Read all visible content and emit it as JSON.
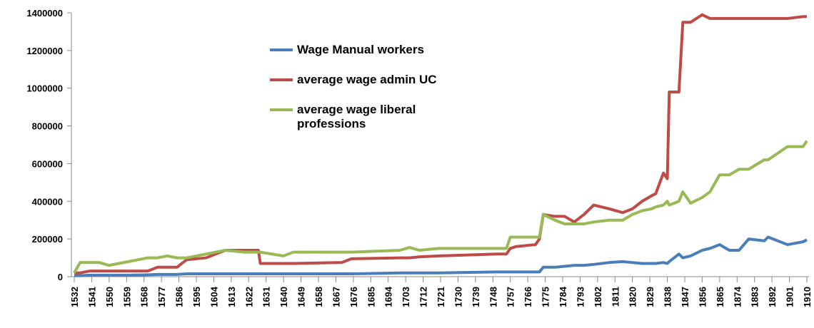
{
  "chart_data": {
    "type": "line",
    "x": [
      1532,
      1535,
      1540,
      1545,
      1550,
      1560,
      1570,
      1575,
      1580,
      1585,
      1590,
      1600,
      1610,
      1620,
      1627,
      1628,
      1640,
      1645,
      1670,
      1675,
      1700,
      1705,
      1710,
      1720,
      1750,
      1755,
      1757,
      1760,
      1770,
      1772,
      1774,
      1780,
      1785,
      1790,
      1795,
      1800,
      1808,
      1815,
      1820,
      1825,
      1830,
      1832,
      1836,
      1838,
      1839,
      1844,
      1846,
      1850,
      1856,
      1860,
      1865,
      1870,
      1875,
      1880,
      1888,
      1890,
      1900,
      1908,
      1910
    ],
    "series": [
      {
        "name": "Wage Manual workers",
        "color": "#4a7ebb",
        "values": [
          5000,
          5000,
          8000,
          8000,
          8000,
          8000,
          10000,
          12000,
          12000,
          12000,
          15000,
          15000,
          15000,
          15000,
          15000,
          15000,
          15000,
          15000,
          15000,
          15000,
          20000,
          20000,
          20000,
          20000,
          25000,
          25000,
          25000,
          25000,
          25000,
          25000,
          50000,
          50000,
          55000,
          60000,
          60000,
          65000,
          75000,
          80000,
          75000,
          70000,
          70000,
          70000,
          75000,
          70000,
          80000,
          120000,
          100000,
          110000,
          140000,
          150000,
          170000,
          140000,
          140000,
          200000,
          190000,
          210000,
          170000,
          185000,
          195000
        ]
      },
      {
        "name": "average wage admin UC",
        "color": "#be4b48",
        "values": [
          20000,
          20000,
          30000,
          30000,
          30000,
          30000,
          30000,
          50000,
          50000,
          50000,
          90000,
          100000,
          140000,
          140000,
          140000,
          70000,
          70000,
          70000,
          75000,
          95000,
          100000,
          100000,
          105000,
          110000,
          120000,
          120000,
          150000,
          160000,
          170000,
          200000,
          330000,
          320000,
          320000,
          290000,
          330000,
          380000,
          360000,
          340000,
          360000,
          400000,
          430000,
          440000,
          550000,
          520000,
          980000,
          980000,
          1350000,
          1350000,
          1390000,
          1370000,
          1370000,
          1370000,
          1370000,
          1370000,
          1370000,
          1370000,
          1370000,
          1380000,
          1380000
        ]
      },
      {
        "name": "average wage liberal professions",
        "color": "#98b954",
        "values": [
          20000,
          75000,
          75000,
          75000,
          60000,
          80000,
          100000,
          100000,
          110000,
          100000,
          100000,
          120000,
          140000,
          130000,
          130000,
          130000,
          110000,
          130000,
          130000,
          130000,
          140000,
          155000,
          140000,
          150000,
          150000,
          150000,
          210000,
          210000,
          210000,
          210000,
          330000,
          300000,
          280000,
          280000,
          280000,
          290000,
          300000,
          300000,
          330000,
          350000,
          360000,
          370000,
          380000,
          400000,
          380000,
          400000,
          450000,
          390000,
          420000,
          450000,
          540000,
          540000,
          570000,
          570000,
          620000,
          620000,
          690000,
          690000,
          720000
        ]
      }
    ],
    "xlim": [
      1532,
      1910
    ],
    "xticks": [
      1532,
      1541,
      1550,
      1559,
      1568,
      1577,
      1586,
      1595,
      1604,
      1613,
      1622,
      1631,
      1640,
      1649,
      1658,
      1667,
      1676,
      1685,
      1694,
      1703,
      1712,
      1721,
      1730,
      1739,
      1748,
      1757,
      1766,
      1775,
      1784,
      1793,
      1802,
      1811,
      1820,
      1829,
      1838,
      1847,
      1856,
      1865,
      1874,
      1883,
      1892,
      1901,
      1910
    ],
    "ylim": [
      0,
      1400000
    ],
    "yticks": [
      0,
      200000,
      400000,
      600000,
      800000,
      1000000,
      1200000,
      1400000
    ],
    "grid": false
  }
}
